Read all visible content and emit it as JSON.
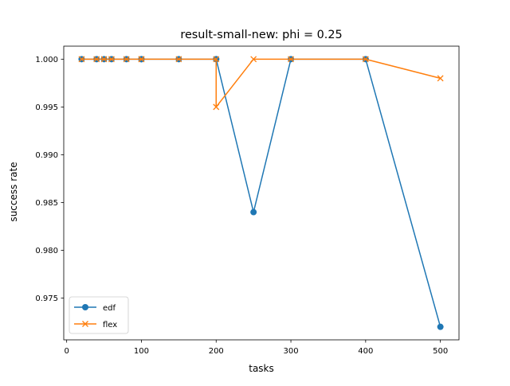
{
  "chart_data": {
    "type": "line",
    "title": "result-small-new: phi = 0.25",
    "xlabel": "tasks",
    "ylabel": "success rate",
    "xlim": [
      -3.9,
      524.9
    ],
    "ylim": [
      0.97064,
      1.00136
    ],
    "x_ticks": [
      0,
      100,
      200,
      300,
      400,
      500
    ],
    "x_tick_labels": [
      "0",
      "100",
      "200",
      "300",
      "400",
      "500"
    ],
    "y_ticks": [
      0.975,
      0.98,
      0.985,
      0.99,
      0.995,
      1.0
    ],
    "y_tick_labels": [
      "0.975",
      "0.980",
      "0.985",
      "0.990",
      "0.995",
      "1.000"
    ],
    "grid": false,
    "legend_position": "lower-left",
    "series": [
      {
        "name": "edf",
        "color": "#1f77b4",
        "marker": "circle",
        "x": [
          20,
          40,
          50,
          60,
          80,
          100,
          100,
          150,
          200,
          200,
          250,
          300,
          400,
          500
        ],
        "y": [
          1.0,
          1.0,
          1.0,
          1.0,
          1.0,
          1.0,
          1.0,
          1.0,
          1.0,
          1.0,
          0.984,
          1.0,
          1.0,
          0.972
        ]
      },
      {
        "name": "flex",
        "color": "#ff7f0e",
        "marker": "x",
        "x": [
          20,
          40,
          50,
          60,
          80,
          100,
          100,
          150,
          200,
          200,
          250,
          300,
          400,
          500
        ],
        "y": [
          1.0,
          1.0,
          1.0,
          1.0,
          1.0,
          1.0,
          1.0,
          1.0,
          1.0,
          0.995,
          1.0,
          1.0,
          1.0,
          0.998
        ]
      }
    ]
  }
}
